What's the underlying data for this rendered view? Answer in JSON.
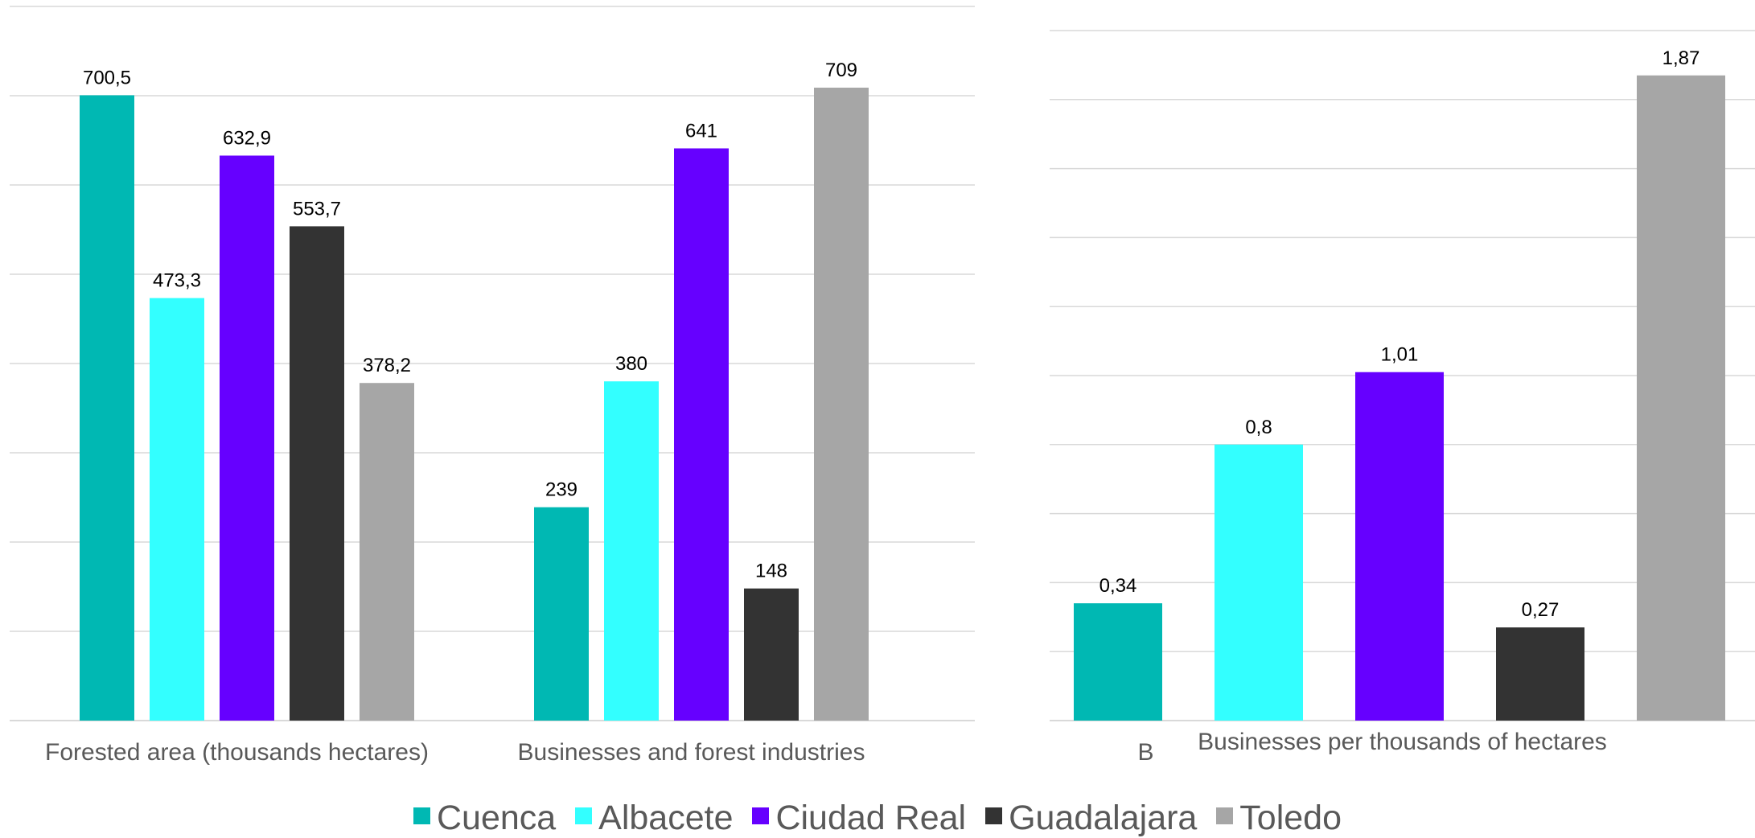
{
  "chart_data": [
    {
      "type": "bar",
      "categories": [
        "Forested area (thousands hectares)",
        "Businesses and forest industries",
        "B"
      ],
      "series": [
        {
          "name": "Cuenca",
          "color": "#00b8b3",
          "values": [
            700.5,
            239,
            null
          ],
          "labels": [
            "700,5",
            "239",
            ""
          ]
        },
        {
          "name": "Albacete",
          "color": "#33ffff",
          "values": [
            473.3,
            380,
            null
          ],
          "labels": [
            "473,3",
            "380",
            ""
          ]
        },
        {
          "name": "Ciudad Real",
          "color": "#6600ff",
          "values": [
            632.9,
            641,
            null
          ],
          "labels": [
            "632,9",
            "641",
            ""
          ]
        },
        {
          "name": "Guadalajara",
          "color": "#333333",
          "values": [
            553.7,
            148,
            null
          ],
          "labels": [
            "553,7",
            "148",
            ""
          ]
        },
        {
          "name": "Toledo",
          "color": "#a6a6a6",
          "values": [
            378.2,
            709,
            null
          ],
          "labels": [
            "378,2",
            "709",
            ""
          ]
        }
      ],
      "ylim": [
        0,
        800
      ],
      "grid": true,
      "legend": "bottom"
    },
    {
      "type": "bar",
      "categories": [
        "Businesses per thousands of hectares"
      ],
      "series": [
        {
          "name": "Cuenca",
          "color": "#00b8b3",
          "values": [
            0.34
          ],
          "labels": [
            "0,34"
          ]
        },
        {
          "name": "Albacete",
          "color": "#33ffff",
          "values": [
            0.8
          ],
          "labels": [
            "0,8"
          ]
        },
        {
          "name": "Ciudad Real",
          "color": "#6600ff",
          "values": [
            1.01
          ],
          "labels": [
            "1,01"
          ]
        },
        {
          "name": "Guadalajara",
          "color": "#333333",
          "values": [
            0.27
          ],
          "labels": [
            "0,27"
          ]
        },
        {
          "name": "Toledo",
          "color": "#a6a6a6",
          "values": [
            1.87
          ],
          "labels": [
            "1,87"
          ]
        }
      ],
      "ylim": [
        0,
        2
      ],
      "grid": true,
      "legend": "bottom"
    }
  ],
  "legend": {
    "items": [
      {
        "label": "Cuenca",
        "color": "#00b8b3"
      },
      {
        "label": "Albacete",
        "color": "#33ffff"
      },
      {
        "label": "Ciudad Real",
        "color": "#6600ff"
      },
      {
        "label": "Guadalajara",
        "color": "#333333"
      },
      {
        "label": "Toledo",
        "color": "#a6a6a6"
      }
    ]
  }
}
